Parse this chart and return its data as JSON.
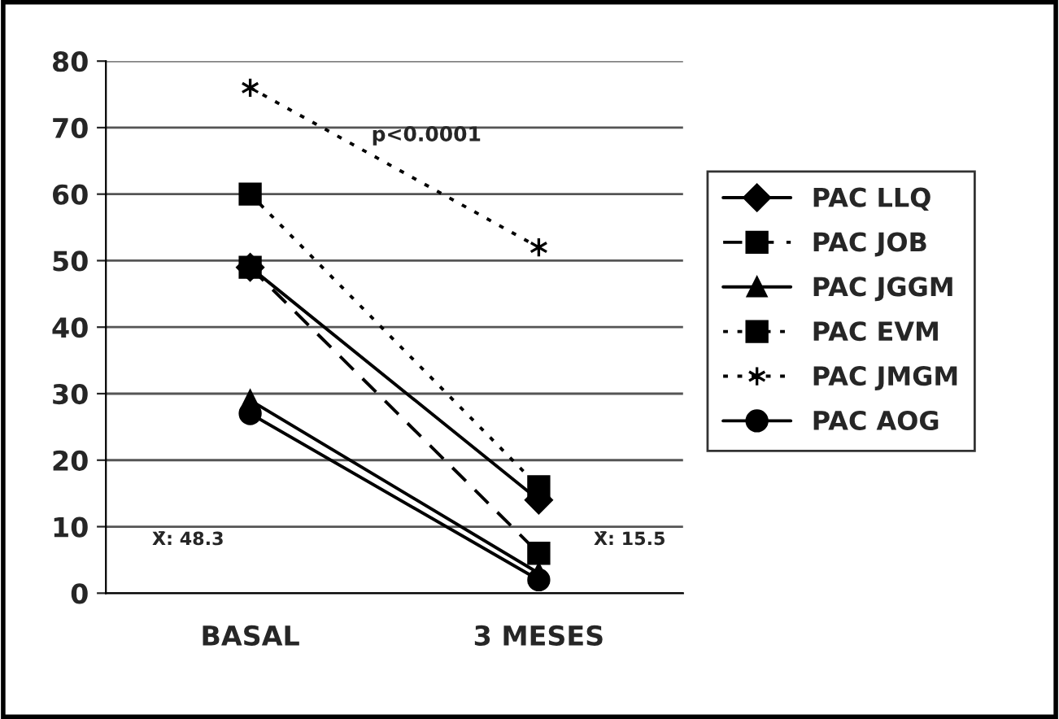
{
  "chart_data": {
    "type": "line",
    "categories": [
      "BASAL",
      "3 MESES"
    ],
    "series": [
      {
        "name": "PAC LLQ",
        "color": "#000000",
        "values": [
          49,
          14
        ],
        "marker": "diamond",
        "line_style": "solid"
      },
      {
        "name": "PAC JOB",
        "color": "#000000",
        "values": [
          49,
          6
        ],
        "marker": "square",
        "line_style": "dashed"
      },
      {
        "name": "PAC JGGM",
        "color": "#000000",
        "values": [
          29,
          3
        ],
        "marker": "triangle",
        "line_style": "solid"
      },
      {
        "name": "PAC EVM",
        "color": "#000000",
        "values": [
          60,
          16
        ],
        "marker": "square",
        "line_style": "dotted"
      },
      {
        "name": "PAC JMGM",
        "color": "#000000",
        "values": [
          76,
          52
        ],
        "marker": "cross",
        "line_style": "dotted"
      },
      {
        "name": "PAC AOG",
        "color": "#000000",
        "values": [
          27,
          2
        ],
        "marker": "circle",
        "line_style": "solid"
      }
    ],
    "ylim": [
      0,
      80
    ],
    "yticks": [
      0,
      10,
      20,
      30,
      40,
      50,
      60,
      70,
      80
    ],
    "grid": "y",
    "legend": "right",
    "annotations": [
      "p<0.0001",
      "X̄: 48.3",
      "X̄: 15.5"
    ]
  }
}
